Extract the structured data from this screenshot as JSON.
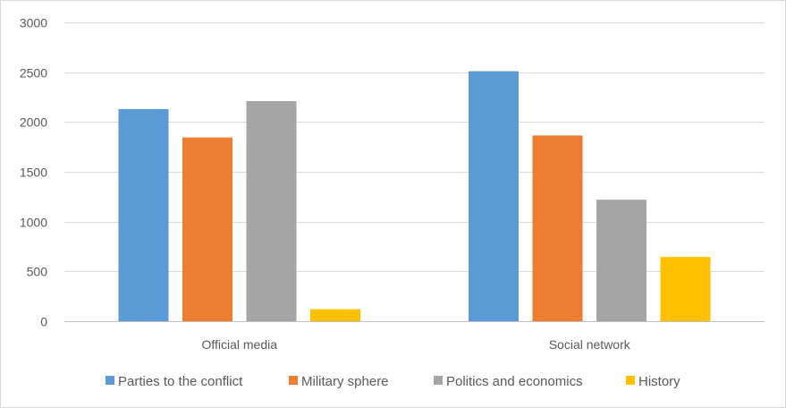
{
  "chart_data": {
    "type": "bar",
    "title": "",
    "xlabel": "",
    "ylabel": "",
    "categories": [
      "Official media",
      "Social network"
    ],
    "series": [
      {
        "name": "Parties to the conflict",
        "color": "#5B9BD5",
        "values": [
          2130,
          2510
        ]
      },
      {
        "name": "Military sphere",
        "color": "#ED7D31",
        "values": [
          1845,
          1865
        ]
      },
      {
        "name": "Politics and economics",
        "color": "#A5A5A5",
        "values": [
          2210,
          1220
        ]
      },
      {
        "name": "History",
        "color": "#FFC000",
        "values": [
          120,
          645
        ]
      }
    ],
    "ylim": [
      0,
      3000
    ],
    "yticks": [
      "0",
      "500",
      "1000",
      "1500",
      "2000",
      "2500",
      "3000"
    ],
    "grid": true,
    "legend_position": "bottom"
  }
}
